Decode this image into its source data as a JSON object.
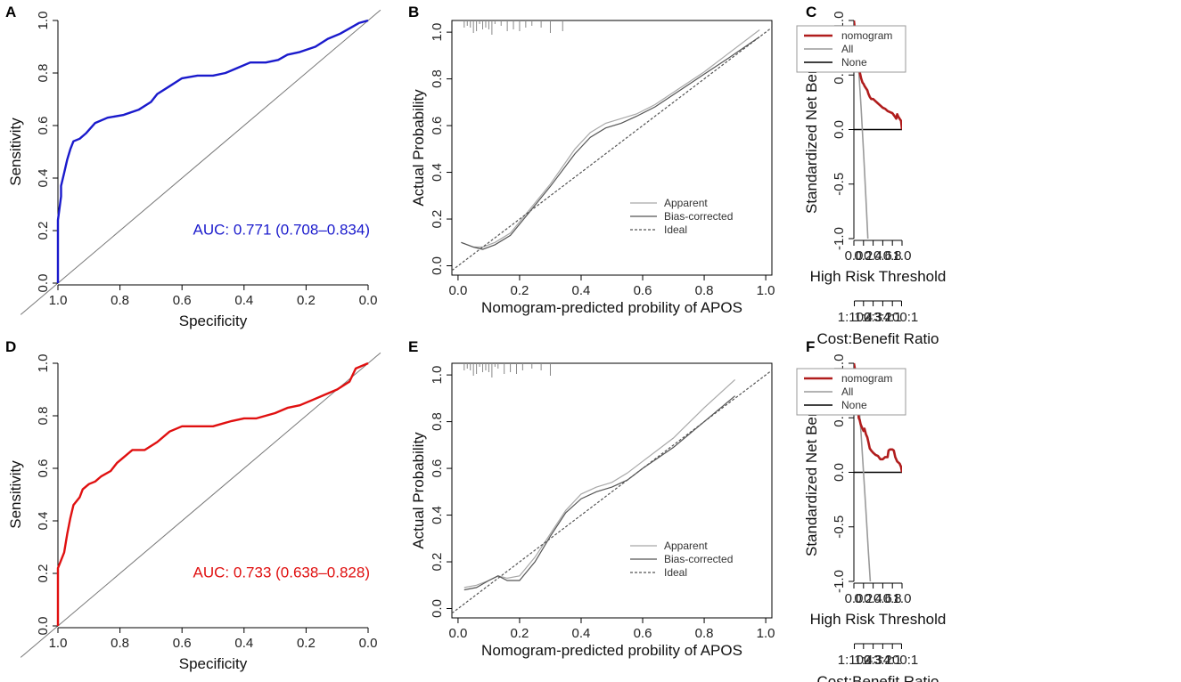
{
  "figure": {
    "panels": {
      "A": {
        "letter": "A",
        "xlabel": "Specificity",
        "ylabel": "Sensitivity",
        "auc_text": "AUC: 0.771 (0.708–0.834)",
        "curve_color": "#1a1acc"
      },
      "B": {
        "letter": "B",
        "xlabel": "Nomogram-predicted probility of APOS",
        "ylabel": "Actual Probability"
      },
      "C": {
        "letter": "C",
        "xlabel": "High Risk Threshold",
        "ylabel": "Standardized Net Benefit",
        "cost_label": "Cost:Benefit Ratio"
      },
      "D": {
        "letter": "D",
        "xlabel": "Specificity",
        "ylabel": "Sensitivity",
        "auc_text": "AUC: 0.733 (0.638–0.828)",
        "curve_color": "#e01010"
      },
      "E": {
        "letter": "E",
        "xlabel": "Nomogram-predicted probility of APOS",
        "ylabel": "Actual Probability"
      },
      "F": {
        "letter": "F",
        "xlabel": "High Risk Threshold",
        "ylabel": "Standardized Net Benefit",
        "cost_label": "Cost:Benefit Ratio"
      }
    },
    "calibration_legend": [
      "Apparent",
      "Bias-corrected",
      "Ideal"
    ],
    "dca_legend": [
      "nomogram",
      "All",
      "None"
    ],
    "colors": {
      "nomogram": "#b01c1c",
      "all": "#9a9a9a",
      "none": "#000000"
    }
  },
  "chart_data": [
    {
      "id": "A",
      "type": "line",
      "title": "",
      "xlabel": "Specificity",
      "ylabel": "Sensitivity",
      "xlim": [
        1.0,
        0.0
      ],
      "ylim": [
        0,
        1
      ],
      "xticks": [
        1.0,
        0.8,
        0.6,
        0.4,
        0.2,
        0.0
      ],
      "xticklabels": [
        "1.0",
        "0.8",
        "0.6",
        "0.4",
        "0.2",
        "0.0"
      ],
      "yticks": [
        0,
        0.2,
        0.4,
        0.6,
        0.8,
        1.0
      ],
      "yticklabels": [
        "0.0",
        "0.2",
        "0.4",
        "0.6",
        "0.8",
        "1.0"
      ],
      "annotation": "AUC: 0.771 (0.708–0.834)",
      "series": [
        {
          "name": "ROC",
          "color": "#1a1acc",
          "specificity": [
            1.0,
            1.0,
            0.99,
            0.99,
            0.98,
            0.97,
            0.96,
            0.95,
            0.93,
            0.91,
            0.88,
            0.84,
            0.79,
            0.74,
            0.7,
            0.68,
            0.64,
            0.6,
            0.55,
            0.5,
            0.46,
            0.42,
            0.38,
            0.33,
            0.29,
            0.26,
            0.22,
            0.17,
            0.13,
            0.09,
            0.06,
            0.03,
            0.0
          ],
          "sensitivity": [
            0.0,
            0.24,
            0.33,
            0.37,
            0.42,
            0.47,
            0.51,
            0.54,
            0.55,
            0.57,
            0.61,
            0.63,
            0.64,
            0.66,
            0.69,
            0.72,
            0.75,
            0.78,
            0.79,
            0.79,
            0.8,
            0.82,
            0.84,
            0.84,
            0.85,
            0.87,
            0.88,
            0.9,
            0.93,
            0.95,
            0.97,
            0.99,
            1.0
          ]
        }
      ]
    },
    {
      "id": "B",
      "type": "line",
      "title": "",
      "xlabel": "Nomogram-predicted probility of APOS",
      "ylabel": "Actual Probability",
      "xlim": [
        -0.02,
        1.02
      ],
      "ylim": [
        -0.04,
        1.05
      ],
      "xticks": [
        0,
        0.2,
        0.4,
        0.6,
        0.8,
        1.0
      ],
      "xticklabels": [
        "0.0",
        "0.2",
        "0.4",
        "0.6",
        "0.8",
        "1.0"
      ],
      "yticks": [
        0,
        0.2,
        0.4,
        0.6,
        0.8,
        1.0
      ],
      "yticklabels": [
        "0.0",
        "0.2",
        "0.4",
        "0.6",
        "0.8",
        "1.0"
      ],
      "legend": [
        "Apparent",
        "Bias-corrected",
        "Ideal"
      ],
      "legend_position": "bottom-right",
      "rug": [
        0.02,
        0.03,
        0.04,
        0.05,
        0.06,
        0.07,
        0.08,
        0.09,
        0.1,
        0.11,
        0.12,
        0.14,
        0.16,
        0.18,
        0.2,
        0.22,
        0.24,
        0.27,
        0.3,
        0.34
      ],
      "series": [
        {
          "name": "Apparent",
          "color": "#a8a8a8",
          "x": [
            0.01,
            0.05,
            0.08,
            0.12,
            0.17,
            0.22,
            0.3,
            0.38,
            0.43,
            0.48,
            0.53,
            0.58,
            0.64,
            0.72,
            0.8,
            0.88,
            0.98
          ],
          "y": [
            0.1,
            0.08,
            0.08,
            0.1,
            0.14,
            0.22,
            0.35,
            0.5,
            0.57,
            0.61,
            0.63,
            0.65,
            0.69,
            0.76,
            0.83,
            0.91,
            1.01
          ]
        },
        {
          "name": "Bias-corrected",
          "color": "#555555",
          "x": [
            0.01,
            0.05,
            0.08,
            0.12,
            0.17,
            0.22,
            0.3,
            0.38,
            0.43,
            0.48,
            0.53,
            0.58,
            0.64,
            0.72,
            0.8,
            0.88,
            0.98
          ],
          "y": [
            0.1,
            0.08,
            0.07,
            0.09,
            0.13,
            0.21,
            0.34,
            0.48,
            0.55,
            0.59,
            0.61,
            0.64,
            0.68,
            0.75,
            0.82,
            0.89,
            0.98
          ]
        },
        {
          "name": "Ideal",
          "color": "#555555",
          "x": [
            -0.02,
            1.02
          ],
          "y": [
            -0.02,
            1.02
          ]
        }
      ]
    },
    {
      "id": "C",
      "type": "line",
      "title": "",
      "xlabel": "High Risk Threshold",
      "ylabel": "Standardized Net Benefit",
      "xlim": [
        0,
        1
      ],
      "ylim": [
        -1,
        1
      ],
      "xticks": [
        0,
        0.2,
        0.4,
        0.6,
        0.8,
        1.0
      ],
      "xticklabels": [
        "0.0",
        "0.2",
        "0.4",
        "0.6",
        "0.8",
        "1.0"
      ],
      "yticks": [
        -1,
        -0.5,
        0,
        0.5,
        1.0
      ],
      "yticklabels": [
        "-1.0",
        "-0.5",
        "0.0",
        "0.5",
        "1.0"
      ],
      "cost_benefit_axis": {
        "label": "Cost:Benefit Ratio",
        "ticks": [
          0.01,
          0.2,
          0.4,
          0.6,
          0.8,
          0.99
        ],
        "ticklabels": [
          "1:100",
          "1:4",
          "2:3",
          "3:2",
          "4:1",
          "100:1"
        ]
      },
      "legend": [
        "nomogram",
        "All",
        "None"
      ],
      "legend_position": "top-right",
      "series": [
        {
          "name": "nomogram",
          "color": "#b01c1c",
          "x": [
            0.0,
            0.02,
            0.04,
            0.06,
            0.08,
            0.1,
            0.12,
            0.15,
            0.18,
            0.2,
            0.22,
            0.25,
            0.28,
            0.3,
            0.33,
            0.36,
            0.4,
            0.45,
            0.5,
            0.55,
            0.6,
            0.65,
            0.7,
            0.75,
            0.8,
            0.85,
            0.88,
            0.9,
            0.92,
            0.95,
            0.98,
            1.0
          ],
          "y": [
            1.0,
            0.92,
            0.8,
            0.7,
            0.62,
            0.56,
            0.53,
            0.47,
            0.43,
            0.42,
            0.4,
            0.38,
            0.36,
            0.33,
            0.3,
            0.28,
            0.28,
            0.26,
            0.24,
            0.22,
            0.2,
            0.19,
            0.17,
            0.16,
            0.15,
            0.12,
            0.1,
            0.14,
            0.12,
            0.1,
            0.08,
            0.0
          ]
        },
        {
          "name": "All",
          "color": "#9a9a9a",
          "x": [
            0.0,
            0.05,
            0.1,
            0.15,
            0.2,
            0.25,
            0.29
          ],
          "y": [
            1.0,
            0.85,
            0.55,
            0.2,
            -0.2,
            -0.63,
            -1.0
          ]
        },
        {
          "name": "None",
          "color": "#000000",
          "x": [
            0,
            1
          ],
          "y": [
            0,
            0
          ]
        }
      ]
    },
    {
      "id": "D",
      "type": "line",
      "title": "",
      "xlabel": "Specificity",
      "ylabel": "Sensitivity",
      "xlim": [
        1.0,
        0.0
      ],
      "ylim": [
        0,
        1
      ],
      "xticks": [
        1.0,
        0.8,
        0.6,
        0.4,
        0.2,
        0.0
      ],
      "xticklabels": [
        "1.0",
        "0.8",
        "0.6",
        "0.4",
        "0.2",
        "0.0"
      ],
      "yticks": [
        0,
        0.2,
        0.4,
        0.6,
        0.8,
        1.0
      ],
      "yticklabels": [
        "0.0",
        "0.2",
        "0.4",
        "0.6",
        "0.8",
        "1.0"
      ],
      "annotation": "AUC: 0.733 (0.638–0.828)",
      "series": [
        {
          "name": "ROC",
          "color": "#e01010",
          "specificity": [
            1.0,
            1.0,
            0.99,
            0.98,
            0.97,
            0.96,
            0.95,
            0.93,
            0.92,
            0.9,
            0.88,
            0.86,
            0.83,
            0.81,
            0.79,
            0.76,
            0.72,
            0.68,
            0.64,
            0.6,
            0.56,
            0.5,
            0.44,
            0.4,
            0.36,
            0.3,
            0.26,
            0.22,
            0.18,
            0.14,
            0.1,
            0.06,
            0.04,
            0.0
          ],
          "sensitivity": [
            0.0,
            0.22,
            0.25,
            0.28,
            0.35,
            0.41,
            0.46,
            0.49,
            0.52,
            0.54,
            0.55,
            0.57,
            0.59,
            0.62,
            0.64,
            0.67,
            0.67,
            0.7,
            0.74,
            0.76,
            0.76,
            0.76,
            0.78,
            0.79,
            0.79,
            0.81,
            0.83,
            0.84,
            0.86,
            0.88,
            0.9,
            0.93,
            0.98,
            1.0
          ]
        }
      ]
    },
    {
      "id": "E",
      "type": "line",
      "title": "",
      "xlabel": "Nomogram-predicted probility of APOS",
      "ylabel": "Actual Probability",
      "xlim": [
        -0.02,
        1.02
      ],
      "ylim": [
        -0.04,
        1.05
      ],
      "xticks": [
        0,
        0.2,
        0.4,
        0.6,
        0.8,
        1.0
      ],
      "xticklabels": [
        "0.0",
        "0.2",
        "0.4",
        "0.6",
        "0.8",
        "1.0"
      ],
      "yticks": [
        0,
        0.2,
        0.4,
        0.6,
        0.8,
        1.0
      ],
      "yticklabels": [
        "0.0",
        "0.2",
        "0.4",
        "0.6",
        "0.8",
        "1.0"
      ],
      "legend": [
        "Apparent",
        "Bias-corrected",
        "Ideal"
      ],
      "legend_position": "bottom-right",
      "rug": [
        0.02,
        0.03,
        0.04,
        0.05,
        0.06,
        0.07,
        0.08,
        0.09,
        0.1,
        0.11,
        0.12,
        0.13,
        0.15,
        0.17,
        0.19,
        0.21,
        0.24,
        0.27,
        0.3
      ],
      "series": [
        {
          "name": "Apparent",
          "color": "#a8a8a8",
          "x": [
            0.02,
            0.06,
            0.1,
            0.13,
            0.16,
            0.2,
            0.25,
            0.3,
            0.35,
            0.4,
            0.45,
            0.5,
            0.55,
            0.6,
            0.7,
            0.8,
            0.9
          ],
          "y": [
            0.09,
            0.1,
            0.12,
            0.14,
            0.13,
            0.14,
            0.22,
            0.32,
            0.42,
            0.49,
            0.52,
            0.54,
            0.58,
            0.63,
            0.73,
            0.86,
            0.98
          ]
        },
        {
          "name": "Bias-corrected",
          "color": "#555555",
          "x": [
            0.02,
            0.06,
            0.1,
            0.13,
            0.16,
            0.2,
            0.25,
            0.3,
            0.35,
            0.4,
            0.45,
            0.5,
            0.55,
            0.6,
            0.7,
            0.8,
            0.9
          ],
          "y": [
            0.08,
            0.09,
            0.12,
            0.14,
            0.12,
            0.12,
            0.2,
            0.31,
            0.41,
            0.47,
            0.5,
            0.52,
            0.55,
            0.6,
            0.69,
            0.8,
            0.91
          ]
        },
        {
          "name": "Ideal",
          "color": "#555555",
          "x": [
            -0.02,
            1.02
          ],
          "y": [
            -0.02,
            1.02
          ]
        }
      ]
    },
    {
      "id": "F",
      "type": "line",
      "title": "",
      "xlabel": "High Risk Threshold",
      "ylabel": "Standardized Net Benefit",
      "xlim": [
        0,
        1
      ],
      "ylim": [
        -1,
        1
      ],
      "xticks": [
        0,
        0.2,
        0.4,
        0.6,
        0.8,
        1.0
      ],
      "xticklabels": [
        "0.0",
        "0.2",
        "0.4",
        "0.6",
        "0.8",
        "1.0"
      ],
      "yticks": [
        -1,
        -0.5,
        0,
        0.5,
        1.0
      ],
      "yticklabels": [
        "-1.0",
        "-0.5",
        "0.0",
        "0.5",
        "1.0"
      ],
      "cost_benefit_axis": {
        "label": "Cost:Benefit Ratio",
        "ticks": [
          0.01,
          0.2,
          0.4,
          0.6,
          0.8,
          0.99
        ],
        "ticklabels": [
          "1:100",
          "1:4",
          "2:3",
          "3:2",
          "4:1",
          "100:1"
        ]
      },
      "legend": [
        "nomogram",
        "All",
        "None"
      ],
      "legend_position": "top-right",
      "series": [
        {
          "name": "nomogram",
          "color": "#b01c1c",
          "x": [
            0.0,
            0.02,
            0.04,
            0.06,
            0.08,
            0.09,
            0.1,
            0.12,
            0.14,
            0.16,
            0.18,
            0.2,
            0.22,
            0.25,
            0.28,
            0.3,
            0.33,
            0.36,
            0.4,
            0.45,
            0.5,
            0.55,
            0.6,
            0.65,
            0.7,
            0.72,
            0.75,
            0.8,
            0.83,
            0.86,
            0.9,
            0.95,
            0.98,
            1.0
          ],
          "y": [
            1.0,
            0.95,
            0.85,
            0.75,
            0.65,
            0.58,
            0.5,
            0.48,
            0.44,
            0.42,
            0.4,
            0.38,
            0.4,
            0.35,
            0.32,
            0.28,
            0.22,
            0.2,
            0.18,
            0.16,
            0.15,
            0.12,
            0.12,
            0.14,
            0.14,
            0.2,
            0.21,
            0.21,
            0.2,
            0.14,
            0.1,
            0.08,
            0.05,
            0.0
          ]
        },
        {
          "name": "All",
          "color": "#9a9a9a",
          "x": [
            0.0,
            0.05,
            0.1,
            0.15,
            0.2,
            0.25,
            0.3,
            0.34
          ],
          "y": [
            1.0,
            0.87,
            0.65,
            0.35,
            0.0,
            -0.35,
            -0.72,
            -1.0
          ]
        },
        {
          "name": "None",
          "color": "#000000",
          "x": [
            0,
            1
          ],
          "y": [
            0,
            0
          ]
        }
      ]
    }
  ]
}
